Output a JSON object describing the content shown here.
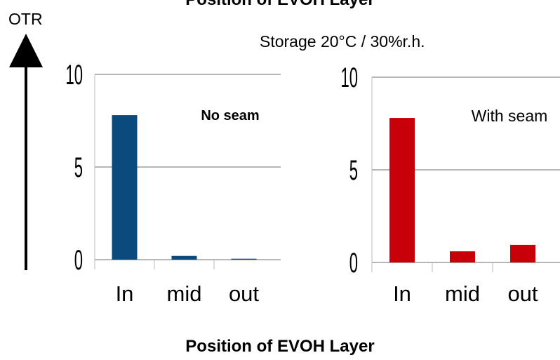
{
  "headers": {
    "top_title": "Position of EVOH Layer",
    "y_label": "OTR",
    "condition": "Storage 20°C / 30%r.h.",
    "x_title": "Position of EVOH Layer"
  },
  "chart_data": [
    {
      "type": "bar",
      "annotation": "No seam",
      "categories": [
        "In",
        "mid",
        "out"
      ],
      "values": [
        7.8,
        0.2,
        0.05
      ],
      "color": "#0a4a7d",
      "ylim": [
        0,
        10
      ],
      "yticks": [
        0,
        5,
        10
      ],
      "grid": true
    },
    {
      "type": "bar",
      "annotation": "With seam",
      "categories": [
        "In",
        "mid",
        "out"
      ],
      "values": [
        7.8,
        0.6,
        0.95
      ],
      "color": "#c8000a",
      "ylim": [
        0,
        10
      ],
      "yticks": [
        0,
        5,
        10
      ],
      "grid": true
    }
  ]
}
